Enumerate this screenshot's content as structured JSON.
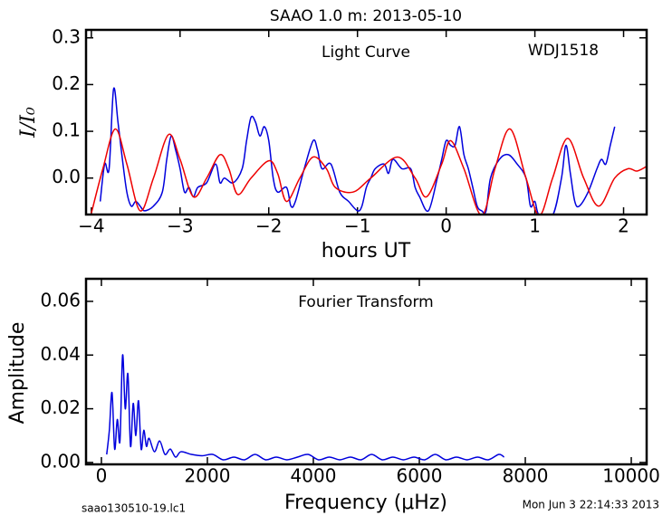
{
  "chart_data": [
    {
      "type": "line",
      "title": "SAAO 1.0 m:  2013-05-10",
      "annotations": [
        "Light Curve",
        "WDJ1518"
      ],
      "xlabel": "hours UT",
      "ylabel": "I/I₀",
      "xlim": [
        -4.06,
        2.26
      ],
      "ylim": [
        -0.078,
        0.317
      ],
      "xticks": [
        {
          "value": -4,
          "label": "−4"
        },
        {
          "value": -3,
          "label": "−3"
        },
        {
          "value": -2,
          "label": "−2"
        },
        {
          "value": -1,
          "label": "−1"
        },
        0,
        1,
        2
      ],
      "yticks": [
        {
          "value": 0,
          "label": "0.0"
        },
        0.1,
        0.2,
        0.3
      ],
      "series": [
        {
          "color": "#0000dd",
          "x": [
            -3.9,
            -3.85,
            -3.8,
            -3.75,
            -3.7,
            -3.65,
            -3.6,
            -3.55,
            -3.5,
            -3.45,
            -3.4,
            -3.3,
            -3.2,
            -3.15,
            -3.1,
            -3.05,
            -3.0,
            -2.95,
            -2.9,
            -2.85,
            -2.8,
            -2.7,
            -2.6,
            -2.55,
            -2.5,
            -2.4,
            -2.3,
            -2.25,
            -2.2,
            -2.15,
            -2.1,
            -2.05,
            -2.0,
            -1.95,
            -1.9,
            -1.8,
            -1.75,
            -1.7,
            -1.6,
            -1.5,
            -1.45,
            -1.4,
            -1.3,
            -1.2,
            -1.1,
            -1.0,
            -0.95,
            -0.9,
            -0.85,
            -0.8,
            -0.7,
            -0.65,
            -0.6,
            -0.5,
            -0.4,
            -0.35,
            -0.3,
            -0.2,
            -0.1,
            -0.05,
            0.0,
            0.05,
            0.1,
            0.15,
            0.2,
            0.25,
            0.3,
            0.35,
            0.4,
            0.45,
            0.5,
            0.6,
            0.7,
            0.8,
            0.9,
            0.95,
            1.0,
            1.05,
            1.2,
            1.3,
            1.35,
            1.4,
            1.45,
            1.5,
            1.6,
            1.7,
            1.75,
            1.8,
            1.85,
            1.9
          ],
          "values": [
            -0.05,
            0.03,
            0.02,
            0.19,
            0.12,
            0.04,
            -0.03,
            -0.06,
            -0.05,
            -0.06,
            -0.07,
            -0.06,
            -0.03,
            0.04,
            0.09,
            0.06,
            0.02,
            -0.03,
            -0.02,
            -0.04,
            -0.02,
            -0.01,
            0.03,
            -0.01,
            0.0,
            -0.01,
            0.02,
            0.08,
            0.13,
            0.12,
            0.09,
            0.11,
            0.08,
            0.0,
            -0.03,
            -0.02,
            -0.06,
            -0.05,
            0.02,
            0.08,
            0.06,
            0.02,
            0.03,
            -0.03,
            -0.05,
            -0.07,
            -0.06,
            -0.02,
            0.0,
            0.02,
            0.03,
            0.01,
            0.04,
            0.02,
            0.02,
            -0.02,
            -0.04,
            -0.07,
            0.0,
            0.04,
            0.08,
            0.07,
            0.07,
            0.11,
            0.05,
            0.02,
            -0.02,
            -0.06,
            -0.07,
            -0.07,
            0.0,
            0.04,
            0.05,
            0.03,
            0.0,
            -0.06,
            -0.05,
            -0.08,
            -0.08,
            0.0,
            0.07,
            0.01,
            -0.05,
            -0.06,
            -0.03,
            0.02,
            0.04,
            0.03,
            0.07,
            0.11
          ]
        },
        {
          "color": "#ee0000",
          "x": [
            -4.0,
            -3.87,
            -3.73,
            -3.6,
            -3.45,
            -3.3,
            -3.13,
            -3.0,
            -2.85,
            -2.7,
            -2.55,
            -2.45,
            -2.35,
            -2.2,
            -2.0,
            -1.9,
            -1.8,
            -1.65,
            -1.5,
            -1.35,
            -1.25,
            -1.05,
            -0.85,
            -0.55,
            -0.35,
            -0.22,
            -0.05,
            0.05,
            0.2,
            0.4,
            0.55,
            0.72,
            0.9,
            1.05,
            1.2,
            1.37,
            1.55,
            1.72,
            1.9,
            2.05,
            2.15,
            2.26
          ],
          "values": [
            -0.075,
            0.02,
            0.105,
            0.03,
            -0.07,
            0.0,
            0.093,
            0.04,
            -0.04,
            0.0,
            0.05,
            0.02,
            -0.035,
            0.0,
            0.037,
            0.01,
            -0.05,
            0.0,
            0.045,
            0.02,
            -0.02,
            -0.03,
            0.0,
            0.045,
            0.0,
            -0.04,
            0.03,
            0.08,
            0.02,
            -0.08,
            0.02,
            0.105,
            0.0,
            -0.08,
            0.0,
            0.085,
            0.0,
            -0.06,
            0.0,
            0.02,
            0.015,
            0.025
          ]
        }
      ]
    },
    {
      "type": "line",
      "annotations": [
        "Fourier Transform"
      ],
      "xlabel": "Frequency (μHz)",
      "ylabel": "Amplitude",
      "xlim": [
        -290,
        10290
      ],
      "ylim": [
        -0.0007,
        0.0684
      ],
      "xticks": [
        0,
        2000,
        4000,
        6000,
        8000,
        10000
      ],
      "yticks": [
        {
          "value": 0,
          "label": "0.00"
        },
        {
          "value": 0.02,
          "label": "0.02"
        },
        {
          "value": 0.04,
          "label": "0.04"
        },
        {
          "value": 0.06,
          "label": "0.06"
        }
      ],
      "series": [
        {
          "color": "#0000dd",
          "x": [
            100,
            150,
            200,
            250,
            300,
            350,
            400,
            450,
            500,
            550,
            600,
            650,
            700,
            750,
            800,
            850,
            900,
            1000,
            1100,
            1200,
            1300,
            1400,
            1500,
            1700,
            1900,
            2100,
            2300,
            2500,
            2700,
            2900,
            3100,
            3300,
            3500,
            3700,
            3900,
            4100,
            4300,
            4500,
            4700,
            4900,
            5100,
            5300,
            5500,
            5700,
            5900,
            6100,
            6300,
            6500,
            6700,
            6900,
            7100,
            7300,
            7500,
            7600
          ],
          "values": [
            0.003,
            0.012,
            0.026,
            0.005,
            0.016,
            0.008,
            0.04,
            0.02,
            0.033,
            0.006,
            0.022,
            0.01,
            0.023,
            0.005,
            0.012,
            0.006,
            0.009,
            0.004,
            0.008,
            0.003,
            0.005,
            0.002,
            0.004,
            0.003,
            0.0025,
            0.003,
            0.001,
            0.002,
            0.001,
            0.003,
            0.001,
            0.002,
            0.001,
            0.002,
            0.003,
            0.001,
            0.002,
            0.001,
            0.002,
            0.001,
            0.003,
            0.001,
            0.002,
            0.001,
            0.002,
            0.001,
            0.003,
            0.001,
            0.002,
            0.001,
            0.002,
            0.001,
            0.003,
            0.002
          ]
        }
      ]
    }
  ],
  "footer": {
    "left": "saao130510-19.lc1",
    "right": "Mon Jun  3 22:14:33 2013"
  }
}
